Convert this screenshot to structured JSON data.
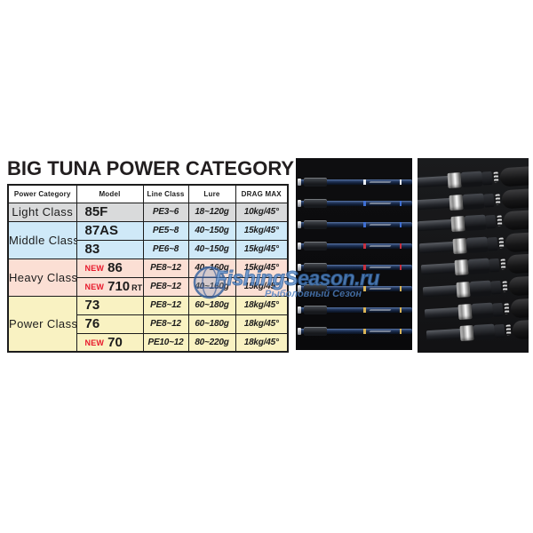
{
  "title": "BIG TUNA POWER CATEGORY",
  "table": {
    "headers": [
      "Power Category",
      "Model",
      "Line Class",
      "Lure",
      "DRAG MAX"
    ],
    "new_label": "NEW",
    "new_color": "#e8192c",
    "categories": [
      {
        "label": "Light Class",
        "color": "#d9dadb",
        "rows": 1
      },
      {
        "label": "Middle Class",
        "color": "#cfe9f8",
        "rows": 2
      },
      {
        "label": "Heavy Class",
        "color": "#fbdfd4",
        "rows": 2
      },
      {
        "label": "Power Class",
        "color": "#f9f2c2",
        "rows": 3
      }
    ],
    "rows": [
      {
        "category": "Light Class",
        "is_new": false,
        "model": "85F",
        "line_class": "PE3~6",
        "lure": "18~120g",
        "drag_max": "10kg/45°"
      },
      {
        "category": "Middle Class",
        "is_new": false,
        "model": "87AS",
        "line_class": "PE5~8",
        "lure": "40~150g",
        "drag_max": "15kg/45°"
      },
      {
        "category": "Middle Class",
        "is_new": false,
        "model": "83",
        "line_class": "PE6~8",
        "lure": "40~150g",
        "drag_max": "15kg/45°"
      },
      {
        "category": "Heavy Class",
        "is_new": true,
        "model": "86",
        "line_class": "PE8~12",
        "lure": "40~160g",
        "drag_max": "15kg/45°"
      },
      {
        "category": "Heavy Class",
        "is_new": true,
        "model": "710",
        "model_suffix": "RT",
        "line_class": "PE8~12",
        "lure": "40~160g",
        "drag_max": "15kg/45°"
      },
      {
        "category": "Power Class",
        "is_new": false,
        "model": "73",
        "line_class": "PE8~12",
        "lure": "60~180g",
        "drag_max": "18kg/45°"
      },
      {
        "category": "Power Class",
        "is_new": false,
        "model": "76",
        "line_class": "PE8~12",
        "lure": "60~180g",
        "drag_max": "18kg/45°"
      },
      {
        "category": "Power Class",
        "is_new": true,
        "model": "70",
        "line_class": "PE10~12",
        "lure": "80~220g",
        "drag_max": "18kg/45°"
      }
    ]
  },
  "watermark": {
    "main": "FishingSeason.ru",
    "sub": "Рыболовный Сезон",
    "color": "#5b8fce",
    "outline_color": "#2c5f9e"
  },
  "middle_panel": {
    "rod_count": 8,
    "rods": [
      {
        "accent": "#e9edf4"
      },
      {
        "accent": "#3f6fd2"
      },
      {
        "accent": "#3f6fd2"
      },
      {
        "accent": "#c5303f"
      },
      {
        "accent": "#c5303f"
      },
      {
        "accent": "#d9b457"
      },
      {
        "accent": "#d9b457"
      },
      {
        "accent": "#d9b457"
      }
    ]
  },
  "right_panel": {
    "handle_count": 8
  }
}
